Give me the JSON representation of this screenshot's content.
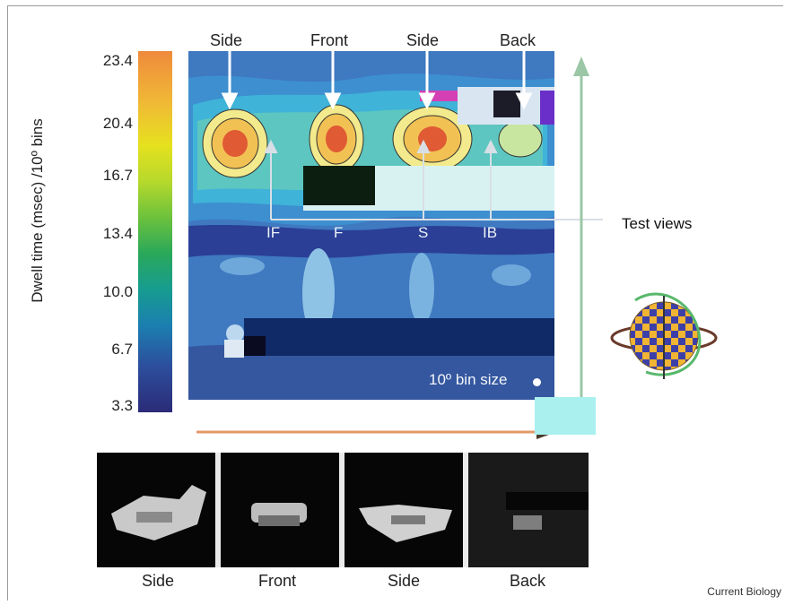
{
  "colorbar": {
    "label": "Dwell time (msec) /10º bins",
    "ticks": [
      "23.4",
      "20.4",
      "16.7",
      "13.4",
      "10.0",
      "6.7",
      "3.3"
    ]
  },
  "top_labels": [
    "Side",
    "Front",
    "Side",
    "Back"
  ],
  "test_view_labels": [
    "IF",
    "F",
    "S",
    "IB"
  ],
  "test_views_caption": "Test views",
  "bin_size_label": "10º bin size",
  "bottom_labels": [
    "Side",
    "Front",
    "Side",
    "Back"
  ],
  "credit": "Current Biology"
}
